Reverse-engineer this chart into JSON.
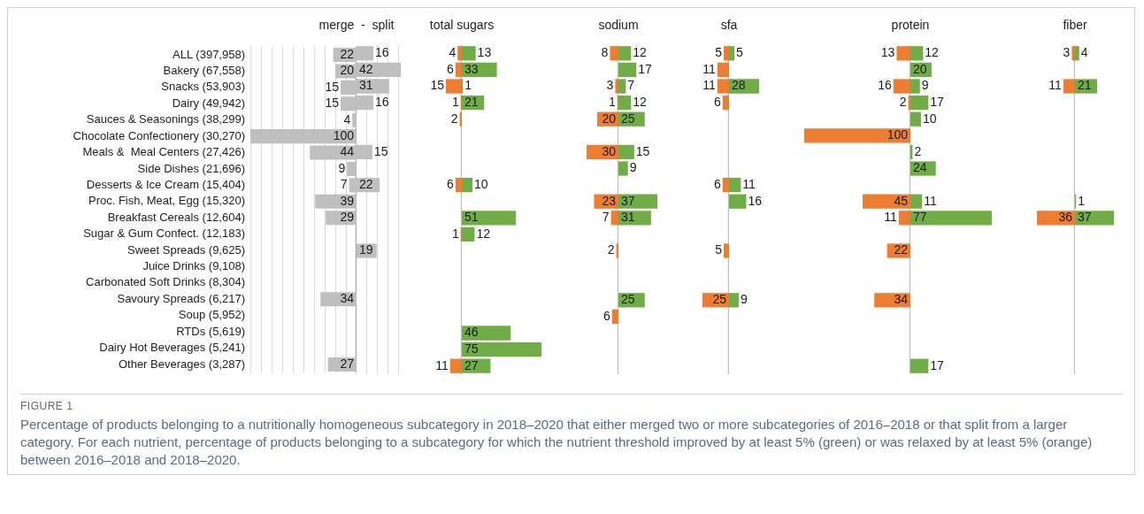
{
  "chart_data": [
    {
      "type": "bar",
      "orientation": "horizontal",
      "title": "merge  -  split",
      "tick_labels": "y",
      "grid": "x",
      "data_labels": true,
      "categories": [
        "ALL (397,958)",
        "Bakery (67,558)",
        "Snacks (53,903)",
        "Dairy (49,942)",
        "Sauces & Seasonings (38,299)",
        "Chocolate Confectionery (30,270)",
        "Meals &  Meal Centers (27,426)",
        "Side Dishes (21,696)",
        "Desserts & Ice Cream (15,404)",
        "Proc. Fish, Meat, Egg (15,320)",
        "Breakfast Cereals (12,604)",
        "Sugar & Gum Confect. (12,183)",
        "Sweet Spreads (9,625)",
        "Juice Drinks (9,108)",
        "Carbonated Soft Drinks (8,304)",
        "Savoury Spreads (6,217)",
        "Soup (5,952)",
        "RTDs (5,619)",
        "Dairy Hot Beverages (5,241)",
        "Other Beverages (3,287)"
      ],
      "xlim": [
        100,
        0
      ],
      "xticks": [
        {
          "value": 100,
          "label": null
        },
        {
          "value": 90,
          "label": null
        },
        {
          "value": 80,
          "label": null
        },
        {
          "value": 70,
          "label": null
        },
        {
          "value": 60,
          "label": null
        },
        {
          "value": 50,
          "label": null
        },
        {
          "value": 40,
          "label": null
        },
        {
          "value": 30,
          "label": null
        },
        {
          "value": 20,
          "label": null
        },
        {
          "value": 10,
          "label": null
        }
      ],
      "ref_lines": [
        {
          "axis": "x",
          "value": 0,
          "color": "#a6a6a6"
        }
      ],
      "series": [
        {
          "color": "#bfbfbf",
          "values": [
            22,
            20,
            15,
            15,
            4,
            100,
            44,
            9,
            7,
            39,
            29,
            null,
            null,
            null,
            null,
            34,
            null,
            null,
            null,
            27
          ]
        }
      ],
      "annotations": [
        "FIGURE 1",
        "Percentage of products belonging to a nutritionally homogeneous subcategory in 2018–2020 that either merged two or more subcategories of 2016–2018 or that split from a larger category. For each nutrient, percentage of products belonging to a subcategory for which the nutrient threshold improved by at least 5% (green) or was relaxed by at least 5% (orange) between 2016–2018 and 2018–2020."
      ]
    },
    {
      "type": "bar",
      "orientation": "horizontal",
      "tick_labels": false,
      "grid": "x",
      "data_labels": true,
      "xticks": [
        {
          "value": 10,
          "label": null
        },
        {
          "value": 20,
          "label": null
        },
        {
          "value": 30,
          "label": null
        },
        {
          "value": 40,
          "label": null
        }
      ],
      "series": [
        {
          "color": "#bfbfbf",
          "values": [
            16,
            42,
            31,
            16,
            null,
            null,
            15,
            null,
            22,
            null,
            null,
            null,
            19,
            null,
            null,
            null,
            null,
            null,
            null,
            null
          ]
        }
      ]
    },
    {
      "type": "bar",
      "orientation": "horizontal",
      "title": "total sugars",
      "tick_labels": false,
      "data_labels": true,
      "xlim": [
        15,
        0
      ],
      "ref_lines": [
        {
          "axis": "x",
          "value": 0,
          "color": "#bfbfbf"
        }
      ],
      "series": [
        {
          "color": "#ed7d31",
          "values": [
            4,
            6,
            15,
            1,
            2,
            null,
            null,
            null,
            6,
            null,
            null,
            1,
            null,
            null,
            null,
            null,
            null,
            null,
            null,
            11
          ]
        }
      ]
    },
    {
      "type": "bar",
      "orientation": "horizontal",
      "tick_labels": false,
      "data_labels": true,
      "series": [
        {
          "color": "#70ad47",
          "values": [
            13,
            33,
            1,
            21,
            null,
            null,
            null,
            null,
            10,
            null,
            51,
            12,
            null,
            null,
            null,
            null,
            null,
            46,
            75,
            27
          ]
        }
      ]
    },
    {
      "type": "bar",
      "orientation": "horizontal",
      "title": "sodium",
      "tick_labels": false,
      "data_labels": true,
      "xlim": [
        30,
        0
      ],
      "ref_lines": [
        {
          "axis": "x",
          "value": 0,
          "color": "#bfbfbf"
        }
      ],
      "series": [
        {
          "color": "#ed7d31",
          "values": [
            8,
            null,
            3,
            1,
            20,
            null,
            30,
            null,
            null,
            23,
            7,
            null,
            2,
            null,
            null,
            null,
            6,
            null,
            null,
            null
          ]
        }
      ]
    },
    {
      "type": "bar",
      "orientation": "horizontal",
      "tick_labels": false,
      "data_labels": true,
      "series": [
        {
          "color": "#70ad47",
          "values": [
            12,
            17,
            7,
            12,
            25,
            null,
            15,
            9,
            null,
            37,
            31,
            null,
            null,
            null,
            null,
            25,
            null,
            null,
            null,
            null
          ]
        }
      ]
    },
    {
      "type": "bar",
      "orientation": "horizontal",
      "title": "sfa",
      "tick_labels": false,
      "data_labels": true,
      "xlim": [
        25,
        0
      ],
      "ref_lines": [
        {
          "axis": "x",
          "value": 0,
          "color": "#bfbfbf"
        }
      ],
      "series": [
        {
          "color": "#ed7d31",
          "values": [
            5,
            11,
            11,
            6,
            null,
            null,
            null,
            null,
            6,
            null,
            null,
            null,
            5,
            null,
            null,
            25,
            null,
            null,
            null,
            null
          ]
        }
      ]
    },
    {
      "type": "bar",
      "orientation": "horizontal",
      "tick_labels": false,
      "data_labels": true,
      "series": [
        {
          "color": "#70ad47",
          "values": [
            5,
            null,
            28,
            null,
            null,
            null,
            null,
            null,
            11,
            16,
            null,
            null,
            null,
            null,
            null,
            9,
            null,
            null,
            null,
            null
          ]
        }
      ]
    },
    {
      "type": "bar",
      "orientation": "horizontal",
      "title": "protein",
      "tick_labels": false,
      "data_labels": true,
      "xlim": [
        100,
        0
      ],
      "ref_lines": [
        {
          "axis": "x",
          "value": 0,
          "color": "#bfbfbf"
        }
      ],
      "series": [
        {
          "color": "#ed7d31",
          "values": [
            13,
            null,
            16,
            2,
            null,
            100,
            null,
            null,
            null,
            45,
            11,
            null,
            22,
            null,
            null,
            34,
            null,
            null,
            null,
            null
          ]
        }
      ]
    },
    {
      "type": "bar",
      "orientation": "horizontal",
      "tick_labels": false,
      "data_labels": true,
      "series": [
        {
          "color": "#70ad47",
          "values": [
            12,
            20,
            9,
            17,
            10,
            null,
            2,
            24,
            null,
            11,
            77,
            null,
            null,
            null,
            null,
            null,
            null,
            null,
            null,
            17
          ]
        }
      ]
    },
    {
      "type": "bar",
      "orientation": "horizontal",
      "title": "fiber",
      "tick_labels": false,
      "data_labels": true,
      "xlim": [
        36,
        0
      ],
      "ref_lines": [
        {
          "axis": "x",
          "value": 0,
          "color": "#bfbfbf"
        }
      ],
      "series": [
        {
          "color": "#ed7d31",
          "values": [
            3,
            null,
            11,
            null,
            null,
            null,
            null,
            null,
            null,
            null,
            36,
            null,
            null,
            null,
            null,
            null,
            null,
            null,
            null,
            null
          ]
        }
      ]
    },
    {
      "type": "bar",
      "orientation": "horizontal",
      "tick_labels": false,
      "data_labels": true,
      "series": [
        {
          "color": "#70ad47",
          "values": [
            4,
            null,
            21,
            null,
            null,
            null,
            null,
            null,
            null,
            1,
            37,
            null,
            null,
            null,
            null,
            null,
            null,
            null,
            null,
            null
          ]
        }
      ]
    }
  ]
}
